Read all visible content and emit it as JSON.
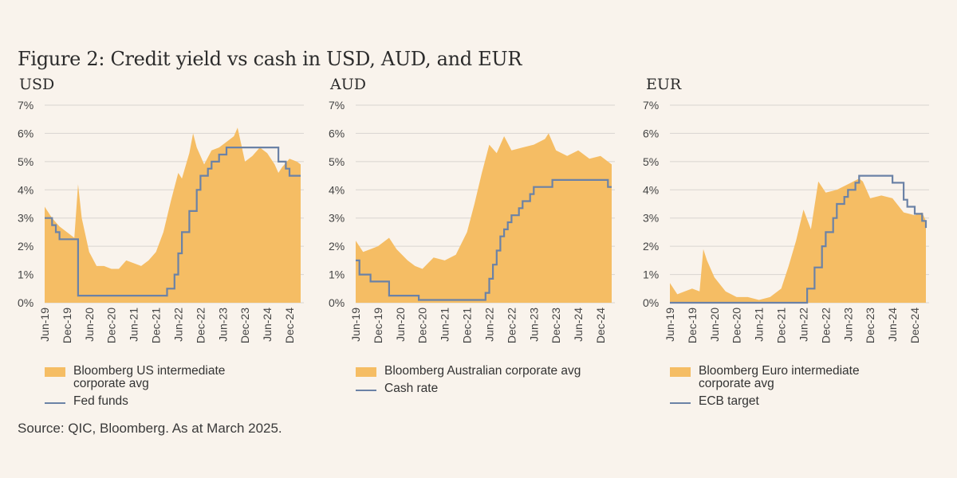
{
  "figure": {
    "title": "Figure 2: Credit yield vs cash in USD, AUD, and EUR",
    "source": "Source: QIC, Bloomberg. As at March 2025."
  },
  "colors": {
    "area": "#f5bd64",
    "line": "#6b82a6",
    "grid": "#d9d5d0",
    "background": "#f9f3ec"
  },
  "panels": [
    {
      "label": "USD",
      "area_legend": "Bloomberg US intermediate corporate avg",
      "line_legend": "Fed funds"
    },
    {
      "label": "AUD",
      "area_legend": "Bloomberg Australian corporate avg",
      "line_legend": "Cash rate"
    },
    {
      "label": "EUR",
      "area_legend": "Bloomberg Euro intermediate corporate avg",
      "line_legend": "ECB target"
    }
  ],
  "chart_data": [
    {
      "type": "area",
      "title": "USD",
      "x_ticks": [
        "Jun-19",
        "Dec-19",
        "Jun-20",
        "Dec-20",
        "Jun-21",
        "Dec-21",
        "Jun-22",
        "Dec-22",
        "Jun-23",
        "Dec-23",
        "Jun-24",
        "Dec-24"
      ],
      "y_ticks": [
        "0%",
        "1%",
        "2%",
        "3%",
        "4%",
        "5%",
        "6%",
        "7%"
      ],
      "ylim": [
        0,
        7
      ],
      "x_range": [
        "2019-06",
        "2025-03"
      ],
      "grid": true,
      "series": [
        {
          "name": "Bloomberg US intermediate corporate avg",
          "kind": "area",
          "points": [
            [
              "2019-06",
              3.4
            ],
            [
              "2019-08",
              3.0
            ],
            [
              "2019-10",
              2.7
            ],
            [
              "2019-12",
              2.5
            ],
            [
              "2020-02",
              2.3
            ],
            [
              "2020-03",
              4.2
            ],
            [
              "2020-04",
              3.0
            ],
            [
              "2020-06",
              1.8
            ],
            [
              "2020-08",
              1.3
            ],
            [
              "2020-10",
              1.3
            ],
            [
              "2020-12",
              1.2
            ],
            [
              "2021-02",
              1.2
            ],
            [
              "2021-04",
              1.5
            ],
            [
              "2021-06",
              1.4
            ],
            [
              "2021-08",
              1.3
            ],
            [
              "2021-10",
              1.5
            ],
            [
              "2021-12",
              1.8
            ],
            [
              "2022-02",
              2.5
            ],
            [
              "2022-04",
              3.6
            ],
            [
              "2022-06",
              4.6
            ],
            [
              "2022-07",
              4.4
            ],
            [
              "2022-09",
              5.3
            ],
            [
              "2022-10",
              6.0
            ],
            [
              "2022-11",
              5.5
            ],
            [
              "2022-12",
              5.2
            ],
            [
              "2023-01",
              4.9
            ],
            [
              "2023-03",
              5.4
            ],
            [
              "2023-05",
              5.5
            ],
            [
              "2023-07",
              5.7
            ],
            [
              "2023-09",
              5.9
            ],
            [
              "2023-10",
              6.2
            ],
            [
              "2023-11",
              5.6
            ],
            [
              "2023-12",
              5.0
            ],
            [
              "2024-02",
              5.2
            ],
            [
              "2024-04",
              5.5
            ],
            [
              "2024-06",
              5.3
            ],
            [
              "2024-08",
              4.9
            ],
            [
              "2024-09",
              4.6
            ],
            [
              "2024-10",
              4.8
            ],
            [
              "2024-12",
              5.1
            ],
            [
              "2025-02",
              5.0
            ],
            [
              "2025-03",
              4.9
            ]
          ]
        },
        {
          "name": "Fed funds",
          "kind": "step",
          "points": [
            [
              "2019-06",
              3.0
            ],
            [
              "2019-08",
              2.75
            ],
            [
              "2019-09",
              2.5
            ],
            [
              "2019-10",
              2.25
            ],
            [
              "2020-03",
              0.25
            ],
            [
              "2022-03",
              0.5
            ],
            [
              "2022-05",
              1.0
            ],
            [
              "2022-06",
              1.75
            ],
            [
              "2022-07",
              2.5
            ],
            [
              "2022-09",
              3.25
            ],
            [
              "2022-11",
              4.0
            ],
            [
              "2022-12",
              4.5
            ],
            [
              "2023-02",
              4.75
            ],
            [
              "2023-03",
              5.0
            ],
            [
              "2023-05",
              5.25
            ],
            [
              "2023-07",
              5.5
            ],
            [
              "2024-09",
              5.0
            ],
            [
              "2024-11",
              4.75
            ],
            [
              "2024-12",
              4.5
            ],
            [
              "2025-03",
              4.5
            ]
          ]
        }
      ]
    },
    {
      "type": "area",
      "title": "AUD",
      "x_ticks": [
        "Jun-19",
        "Dec-19",
        "Jun-20",
        "Dec-20",
        "Jun-21",
        "Dec-21",
        "Jun-22",
        "Dec-22",
        "Jun-23",
        "Dec-23",
        "Jun-24",
        "Dec-24"
      ],
      "y_ticks": [
        "0%",
        "1%",
        "2%",
        "3%",
        "4%",
        "5%",
        "6%",
        "7%"
      ],
      "ylim": [
        0,
        7
      ],
      "x_range": [
        "2019-06",
        "2025-03"
      ],
      "grid": true,
      "series": [
        {
          "name": "Bloomberg Australian corporate avg",
          "kind": "area",
          "points": [
            [
              "2019-06",
              2.2
            ],
            [
              "2019-08",
              1.8
            ],
            [
              "2019-10",
              1.9
            ],
            [
              "2019-12",
              2.0
            ],
            [
              "2020-03",
              2.3
            ],
            [
              "2020-05",
              1.9
            ],
            [
              "2020-08",
              1.5
            ],
            [
              "2020-10",
              1.3
            ],
            [
              "2020-12",
              1.2
            ],
            [
              "2021-03",
              1.6
            ],
            [
              "2021-06",
              1.5
            ],
            [
              "2021-09",
              1.7
            ],
            [
              "2021-12",
              2.5
            ],
            [
              "2022-02",
              3.5
            ],
            [
              "2022-04",
              4.6
            ],
            [
              "2022-06",
              5.6
            ],
            [
              "2022-08",
              5.3
            ],
            [
              "2022-10",
              5.9
            ],
            [
              "2022-12",
              5.4
            ],
            [
              "2023-03",
              5.5
            ],
            [
              "2023-06",
              5.6
            ],
            [
              "2023-09",
              5.8
            ],
            [
              "2023-10",
              6.0
            ],
            [
              "2023-12",
              5.4
            ],
            [
              "2024-03",
              5.2
            ],
            [
              "2024-06",
              5.4
            ],
            [
              "2024-09",
              5.1
            ],
            [
              "2024-12",
              5.2
            ],
            [
              "2025-03",
              4.9
            ]
          ]
        },
        {
          "name": "Cash rate",
          "kind": "step",
          "points": [
            [
              "2019-06",
              1.5
            ],
            [
              "2019-07",
              1.0
            ],
            [
              "2019-10",
              0.75
            ],
            [
              "2020-03",
              0.25
            ],
            [
              "2020-11",
              0.1
            ],
            [
              "2022-05",
              0.35
            ],
            [
              "2022-06",
              0.85
            ],
            [
              "2022-07",
              1.35
            ],
            [
              "2022-08",
              1.85
            ],
            [
              "2022-09",
              2.35
            ],
            [
              "2022-10",
              2.6
            ],
            [
              "2022-11",
              2.85
            ],
            [
              "2022-12",
              3.1
            ],
            [
              "2023-02",
              3.35
            ],
            [
              "2023-03",
              3.6
            ],
            [
              "2023-05",
              3.85
            ],
            [
              "2023-06",
              4.1
            ],
            [
              "2023-11",
              4.35
            ],
            [
              "2025-02",
              4.1
            ],
            [
              "2025-03",
              4.1
            ]
          ]
        }
      ]
    },
    {
      "type": "area",
      "title": "EUR",
      "x_ticks": [
        "Jun-19",
        "Dec-19",
        "Jun-20",
        "Dec-20",
        "Jun-21",
        "Dec-21",
        "Jun-22",
        "Dec-22",
        "Jun-23",
        "Dec-23",
        "Jun-24",
        "Dec-24"
      ],
      "y_ticks": [
        "0%",
        "1%",
        "2%",
        "3%",
        "4%",
        "5%",
        "6%",
        "7%"
      ],
      "ylim": [
        0,
        7
      ],
      "x_range": [
        "2019-06",
        "2025-03"
      ],
      "grid": true,
      "series": [
        {
          "name": "Bloomberg Euro intermediate corporate avg",
          "kind": "area",
          "points": [
            [
              "2019-06",
              0.7
            ],
            [
              "2019-08",
              0.3
            ],
            [
              "2019-10",
              0.4
            ],
            [
              "2019-12",
              0.5
            ],
            [
              "2020-02",
              0.4
            ],
            [
              "2020-03",
              1.9
            ],
            [
              "2020-04",
              1.5
            ],
            [
              "2020-06",
              0.9
            ],
            [
              "2020-09",
              0.4
            ],
            [
              "2020-12",
              0.2
            ],
            [
              "2021-03",
              0.2
            ],
            [
              "2021-06",
              0.1
            ],
            [
              "2021-09",
              0.2
            ],
            [
              "2021-12",
              0.5
            ],
            [
              "2022-02",
              1.3
            ],
            [
              "2022-04",
              2.2
            ],
            [
              "2022-06",
              3.3
            ],
            [
              "2022-08",
              2.6
            ],
            [
              "2022-10",
              4.3
            ],
            [
              "2022-12",
              3.9
            ],
            [
              "2023-03",
              4.0
            ],
            [
              "2023-06",
              4.2
            ],
            [
              "2023-09",
              4.4
            ],
            [
              "2023-10",
              4.3
            ],
            [
              "2023-12",
              3.7
            ],
            [
              "2024-03",
              3.8
            ],
            [
              "2024-06",
              3.7
            ],
            [
              "2024-09",
              3.2
            ],
            [
              "2024-12",
              3.1
            ],
            [
              "2025-02",
              3.2
            ],
            [
              "2025-03",
              2.9
            ]
          ]
        },
        {
          "name": "ECB target",
          "kind": "step",
          "points": [
            [
              "2019-06",
              0.0
            ],
            [
              "2022-07",
              0.5
            ],
            [
              "2022-09",
              1.25
            ],
            [
              "2022-11",
              2.0
            ],
            [
              "2022-12",
              2.5
            ],
            [
              "2023-02",
              3.0
            ],
            [
              "2023-03",
              3.5
            ],
            [
              "2023-05",
              3.75
            ],
            [
              "2023-06",
              4.0
            ],
            [
              "2023-08",
              4.25
            ],
            [
              "2023-09",
              4.5
            ],
            [
              "2024-06",
              4.25
            ],
            [
              "2024-09",
              3.65
            ],
            [
              "2024-10",
              3.4
            ],
            [
              "2024-12",
              3.15
            ],
            [
              "2025-02",
              2.9
            ],
            [
              "2025-03",
              2.65
            ]
          ]
        }
      ]
    }
  ]
}
